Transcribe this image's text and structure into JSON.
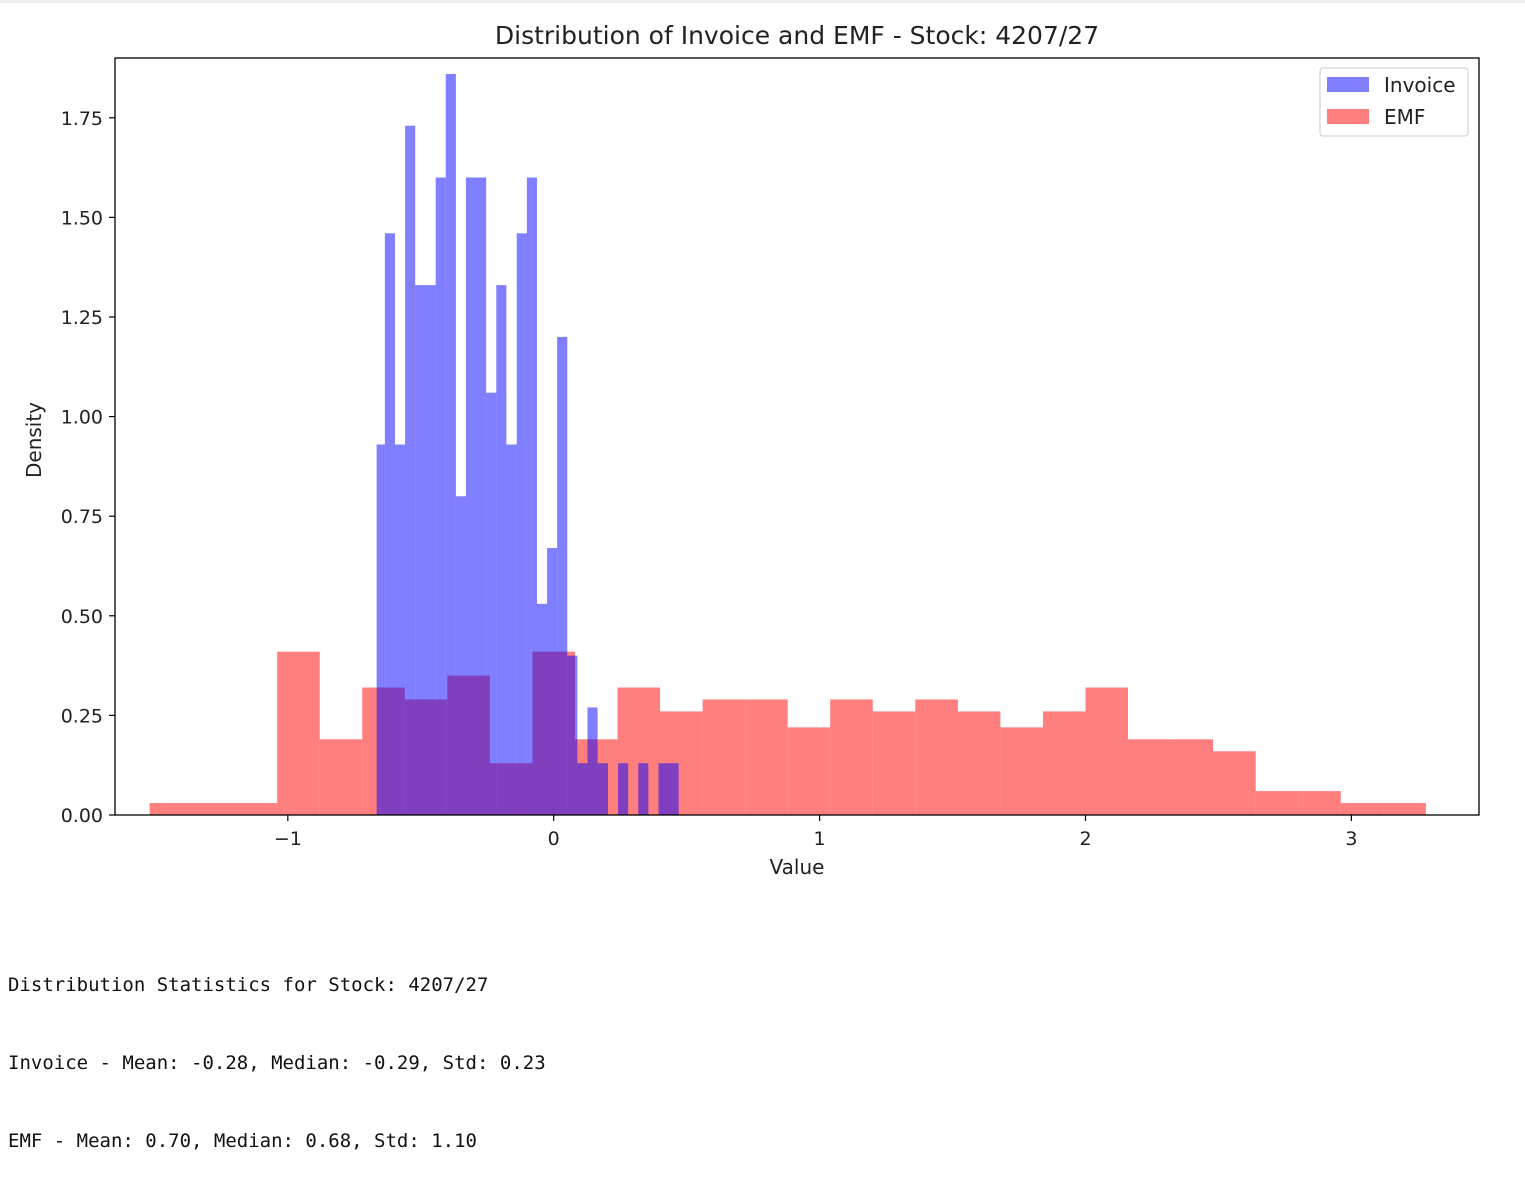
{
  "chart_data": {
    "type": "histogram",
    "title": "Distribution of Invoice and EMF - Stock: 4207/27",
    "xlabel": "Value",
    "ylabel": "Density",
    "xlim": [
      -1.65,
      3.48
    ],
    "ylim": [
      0,
      1.9
    ],
    "xticks": [
      -1,
      0,
      1,
      2,
      3
    ],
    "xtick_labels": [
      "−1",
      "0",
      "1",
      "2",
      "3"
    ],
    "yticks": [
      0,
      0.25,
      0.5,
      0.75,
      1.0,
      1.25,
      1.5,
      1.75
    ],
    "ytick_labels": [
      "0.00",
      "0.25",
      "0.50",
      "0.75",
      "1.00",
      "1.25",
      "1.50",
      "1.75"
    ],
    "legend": {
      "position": "top-right"
    },
    "grid": false,
    "series": [
      {
        "name": "Invoice",
        "color": "#0000ff",
        "alpha": 0.5,
        "bin_edges": [
          -0.666,
          -0.635,
          -0.597,
          -0.559,
          -0.521,
          -0.482,
          -0.444,
          -0.406,
          -0.368,
          -0.33,
          -0.292,
          -0.254,
          -0.216,
          -0.178,
          -0.139,
          -0.101,
          -0.063,
          -0.025,
          0.013,
          0.051,
          0.089,
          0.127,
          0.165,
          0.204,
          0.242,
          0.28,
          0.318,
          0.356,
          0.394,
          0.432,
          0.47
        ],
        "densities": [
          0.93,
          1.46,
          0.93,
          1.73,
          1.33,
          1.33,
          1.6,
          1.86,
          0.8,
          1.6,
          1.6,
          1.06,
          1.33,
          0.93,
          1.46,
          1.6,
          0.53,
          0.67,
          1.2,
          0.4,
          0.13,
          0.27,
          0.13,
          0.0,
          0.13,
          0.0,
          0.13,
          0.0,
          0.13,
          0.13
        ]
      },
      {
        "name": "EMF",
        "color": "#ff0000",
        "alpha": 0.5,
        "bin_edges": [
          -1.52,
          -1.36,
          -1.2,
          -1.04,
          -0.88,
          -0.72,
          -0.56,
          -0.4,
          -0.24,
          -0.08,
          0.08,
          0.24,
          0.4,
          0.56,
          0.72,
          0.88,
          1.04,
          1.2,
          1.36,
          1.52,
          1.68,
          1.84,
          2.0,
          2.16,
          2.32,
          2.48,
          2.64,
          2.8,
          2.96,
          3.12,
          3.28
        ],
        "densities": [
          0.03,
          0.03,
          0.03,
          0.41,
          0.19,
          0.32,
          0.29,
          0.35,
          0.13,
          0.41,
          0.19,
          0.32,
          0.26,
          0.29,
          0.29,
          0.22,
          0.29,
          0.26,
          0.29,
          0.26,
          0.22,
          0.26,
          0.32,
          0.19,
          0.19,
          0.16,
          0.06,
          0.06,
          0.03,
          0.03
        ]
      }
    ]
  },
  "stats": {
    "heading": "Distribution Statistics for Stock: 4207/27",
    "invoice_line": "Invoice - Mean: -0.28, Median: -0.29, Std: 0.23",
    "emf_line": "EMF - Mean: 0.70, Median: 0.68, Std: 1.10"
  }
}
